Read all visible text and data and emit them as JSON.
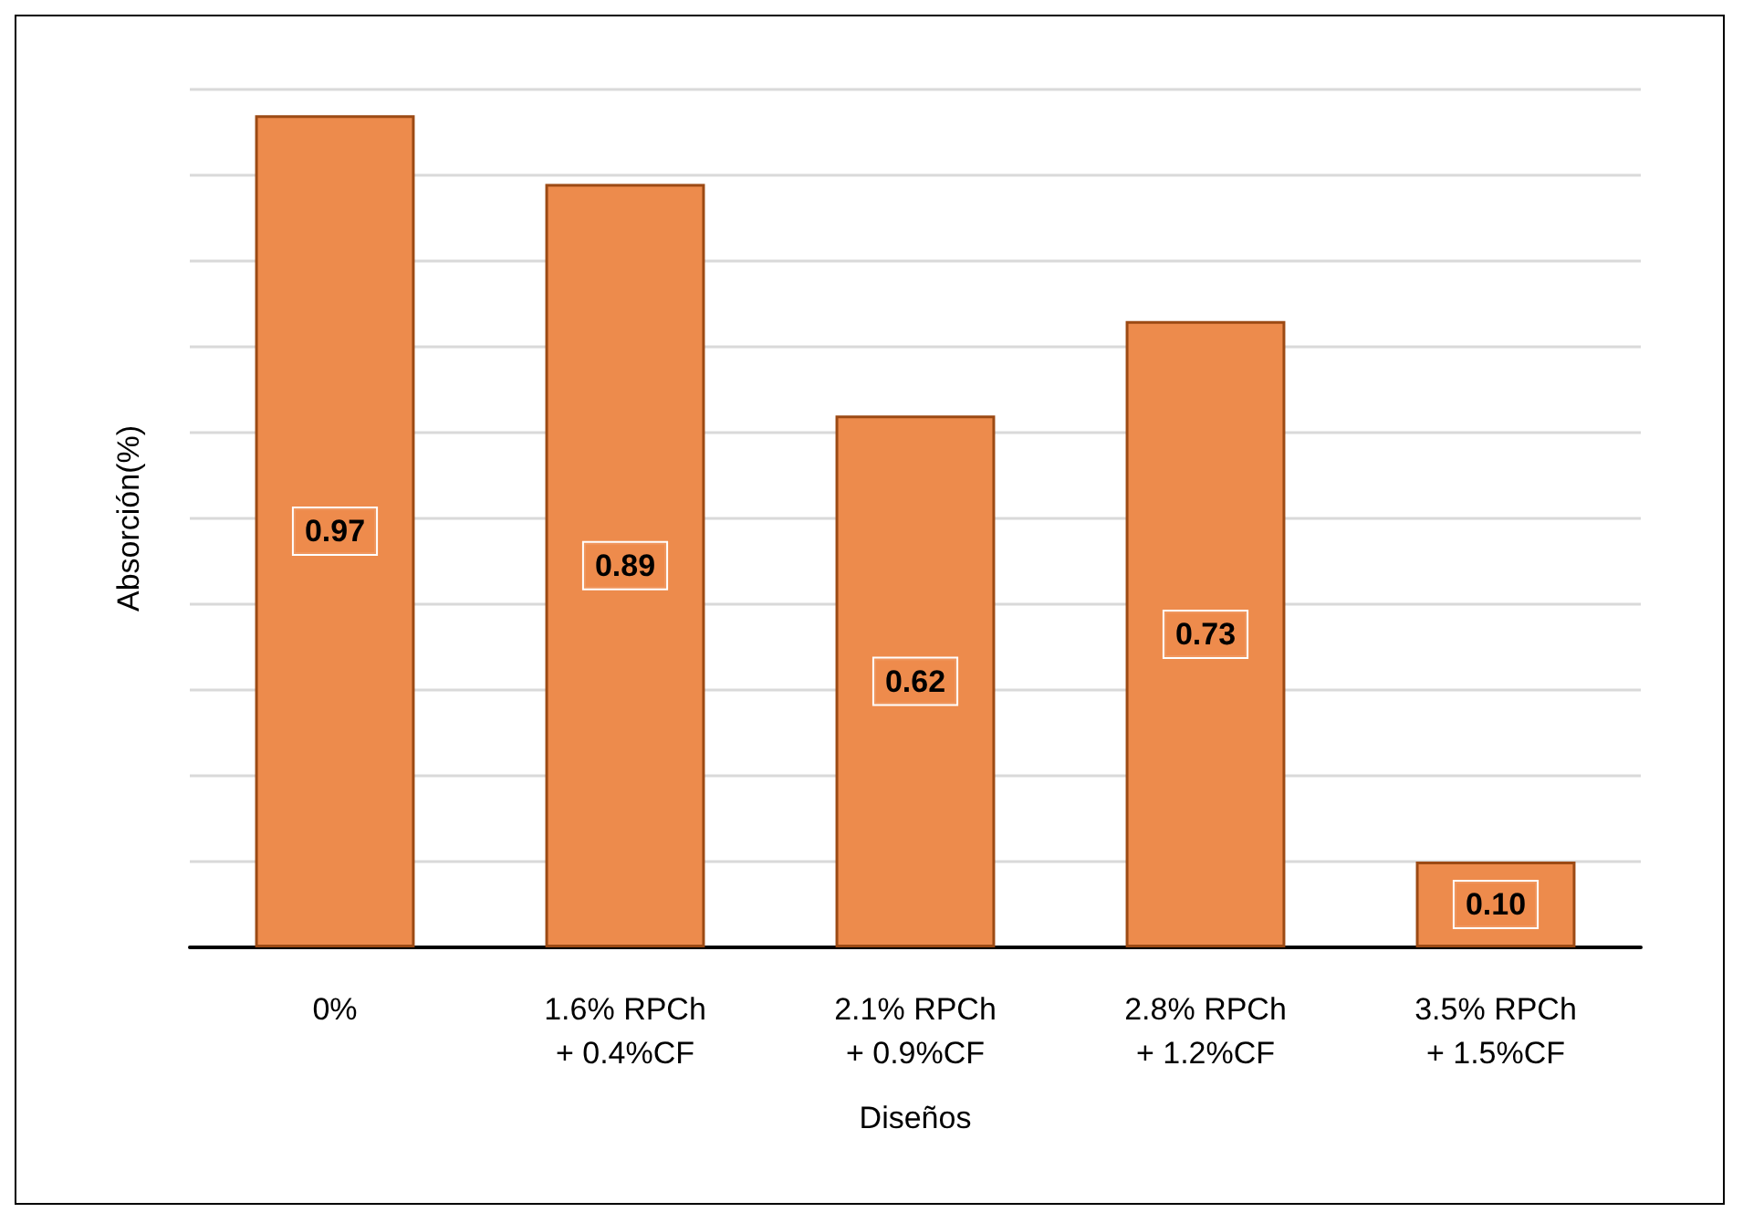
{
  "chart_data": {
    "type": "bar",
    "xlabel": "Diseños",
    "ylabel": "Absorción(%)",
    "categories": [
      "0%",
      "1.6% RPCh\n+ 0.4%CF",
      "2.1% RPCh\n+ 0.9%CF",
      "2.8% RPCh\n+ 1.2%CF",
      "3.5% RPCh\n+ 1.5%CF"
    ],
    "values": [
      0.97,
      0.89,
      0.62,
      0.73,
      0.1
    ],
    "color": "#ed8b4c",
    "ylim": [
      0,
      1
    ],
    "yticks": [
      {
        "value": 0,
        "label": null
      },
      {
        "value": 0.1,
        "label": null
      },
      {
        "value": 0.2,
        "label": null
      },
      {
        "value": 0.3,
        "label": null
      },
      {
        "value": 0.4,
        "label": null
      },
      {
        "value": 0.5,
        "label": null
      },
      {
        "value": 0.6,
        "label": null
      },
      {
        "value": 0.7,
        "label": null
      },
      {
        "value": 0.8,
        "label": null
      },
      {
        "value": 0.9,
        "label": null
      },
      {
        "value": 1.0,
        "label": null
      }
    ],
    "value_labels": [
      "0.97",
      "0.89",
      "0.62",
      "0.73",
      "0.10"
    ],
    "tick_labels": "x",
    "grid": "y"
  }
}
